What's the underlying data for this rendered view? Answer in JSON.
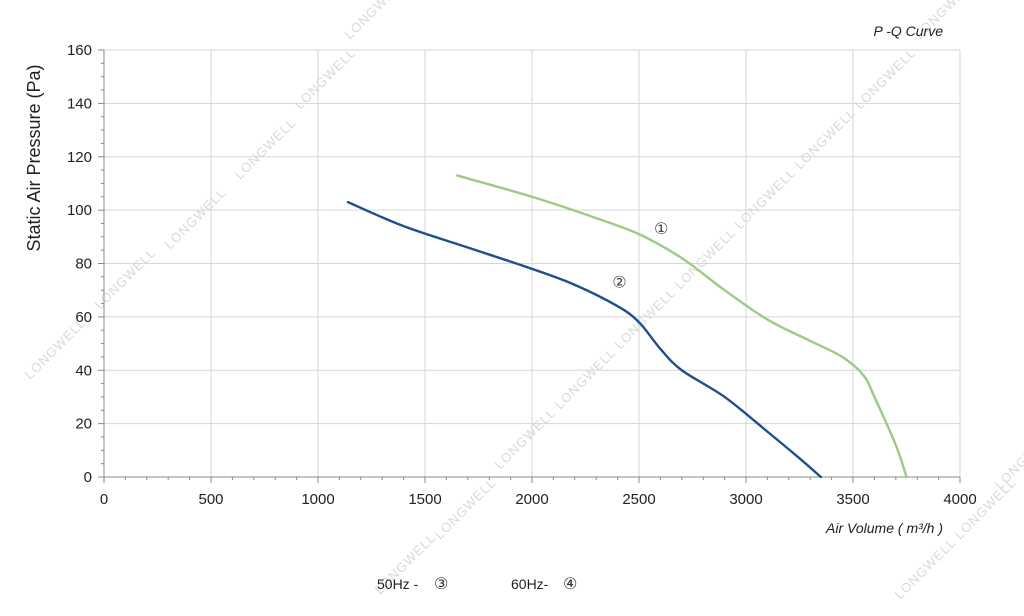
{
  "chart_data": {
    "type": "line",
    "title": "P -Q Curve",
    "xlabel": "Air Volume ( m³/h )",
    "ylabel": "Static Air Pressure  (Pa)",
    "xlim": [
      0,
      4000
    ],
    "ylim": [
      0,
      160
    ],
    "x_ticks": [
      0,
      500,
      1000,
      1500,
      2000,
      2500,
      3000,
      3500,
      4000
    ],
    "y_ticks": [
      0,
      20,
      40,
      60,
      80,
      100,
      120,
      140,
      160
    ],
    "grid": true,
    "series": [
      {
        "name": "①",
        "color": "#9ccb86",
        "points": [
          [
            1650,
            113
          ],
          [
            2000,
            105
          ],
          [
            2300,
            97
          ],
          [
            2500,
            91
          ],
          [
            2700,
            82
          ],
          [
            2900,
            70
          ],
          [
            3100,
            59
          ],
          [
            3300,
            51
          ],
          [
            3450,
            45
          ],
          [
            3550,
            38
          ],
          [
            3600,
            30
          ],
          [
            3700,
            12
          ],
          [
            3750,
            0
          ]
        ]
      },
      {
        "name": "②",
        "color": "#1f4e8c",
        "points": [
          [
            1140,
            103
          ],
          [
            1400,
            94
          ],
          [
            1700,
            86
          ],
          [
            2000,
            78
          ],
          [
            2200,
            72
          ],
          [
            2400,
            64
          ],
          [
            2500,
            58
          ],
          [
            2600,
            48
          ],
          [
            2700,
            40
          ],
          [
            2900,
            30
          ],
          [
            3100,
            17
          ],
          [
            3250,
            7
          ],
          [
            3350,
            0
          ]
        ]
      }
    ],
    "legend": {
      "placement": "bottom-center",
      "items": [
        {
          "label": "50Hz -",
          "symbol": "③"
        },
        {
          "label": "60Hz-",
          "symbol": "④"
        }
      ]
    },
    "watermark_text": "LONGWELL"
  }
}
